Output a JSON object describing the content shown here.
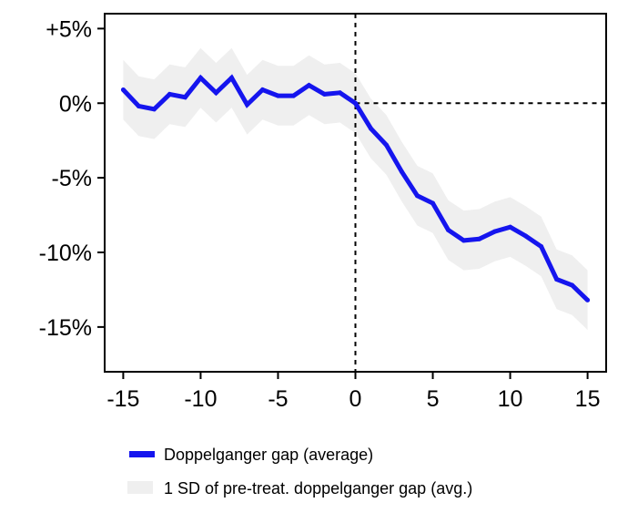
{
  "chart_data": {
    "type": "line",
    "title": "",
    "xlabel": "",
    "ylabel": "",
    "xlim": [
      -16.2,
      16.2
    ],
    "ylim": [
      -18,
      6
    ],
    "x_ticks": [
      -15,
      -10,
      -5,
      0,
      5,
      10,
      15
    ],
    "x_tick_labels": [
      "-15",
      "-10",
      "-5",
      "0",
      "5",
      "10",
      "15"
    ],
    "y_ticks": [
      5,
      0,
      -5,
      -10,
      -15
    ],
    "y_tick_labels": [
      "+5%",
      "0%",
      "-5%",
      "-10%",
      "-15%"
    ],
    "reference_lines": {
      "x": 0,
      "y": 0,
      "style": "dashed"
    },
    "grid": false,
    "legend_position": "bottom",
    "colors": {
      "line": "#1515ee",
      "band": "#efefef"
    },
    "x": [
      -15,
      -14,
      -13,
      -12,
      -11,
      -10,
      -9,
      -8,
      -7,
      -6,
      -5,
      -4,
      -3,
      -2,
      -1,
      0,
      1,
      2,
      3,
      4,
      5,
      6,
      7,
      8,
      9,
      10,
      11,
      12,
      13,
      14,
      15
    ],
    "series": [
      {
        "name": "Doppelganger gap (average)",
        "values": [
          0.9,
          -0.2,
          -0.4,
          0.6,
          0.4,
          1.7,
          0.7,
          1.7,
          -0.1,
          0.9,
          0.5,
          0.5,
          1.2,
          0.6,
          0.7,
          0.0,
          -1.7,
          -2.8,
          -4.6,
          -6.2,
          -6.7,
          -8.5,
          -9.2,
          -9.1,
          -8.6,
          -8.3,
          -8.9,
          -9.6,
          -11.8,
          -12.2,
          -13.2
        ]
      },
      {
        "name": "1 SD of pre-treat. doppelganger gap (avg.)",
        "type": "band",
        "lower": [
          -1.1,
          -2.2,
          -2.4,
          -1.4,
          -1.6,
          -0.3,
          -1.3,
          -0.3,
          -2.1,
          -1.1,
          -1.5,
          -1.5,
          -0.8,
          -1.4,
          -1.3,
          -2.0,
          -3.7,
          -4.8,
          -6.6,
          -8.2,
          -8.7,
          -10.5,
          -11.2,
          -11.1,
          -10.6,
          -10.3,
          -10.9,
          -11.6,
          -13.8,
          -14.2,
          -15.2
        ],
        "upper": [
          2.9,
          1.8,
          1.6,
          2.6,
          2.4,
          3.7,
          2.7,
          3.7,
          1.9,
          2.9,
          2.5,
          2.5,
          3.2,
          2.6,
          2.7,
          2.0,
          0.3,
          -0.8,
          -2.6,
          -4.2,
          -4.7,
          -6.5,
          -7.2,
          -7.1,
          -6.6,
          -6.3,
          -6.9,
          -7.6,
          -9.8,
          -10.2,
          -11.2
        ]
      }
    ]
  }
}
